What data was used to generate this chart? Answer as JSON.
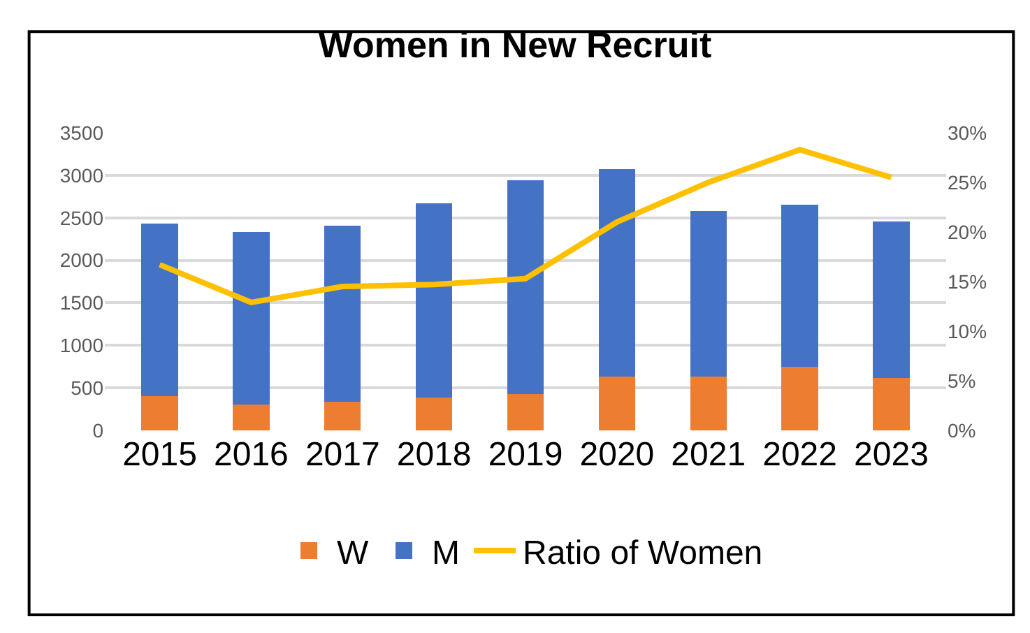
{
  "chart_data": {
    "type": "bar",
    "title": "Women in New Recruit",
    "stacked": true,
    "categories": [
      "2015",
      "2016",
      "2017",
      "2018",
      "2019",
      "2020",
      "2021",
      "2022",
      "2023"
    ],
    "series": [
      {
        "name": "W",
        "color": "#ed7d31",
        "values": [
          400,
          300,
          340,
          390,
          430,
          630,
          630,
          750,
          620
        ]
      },
      {
        "name": "M",
        "color": "#4472c4",
        "values": [
          2030,
          2030,
          2070,
          2280,
          2510,
          2440,
          1950,
          1900,
          1840
        ]
      },
      {
        "name": "Ratio of Women",
        "type": "line",
        "axis": "y2",
        "color": "#ffc000",
        "values": [
          16.7,
          12.9,
          14.5,
          14.7,
          15.3,
          21.0,
          25.0,
          28.3,
          25.5
        ]
      }
    ],
    "ylim": [
      0,
      3500
    ],
    "yticks": [
      0,
      500,
      1000,
      1500,
      2000,
      2500,
      3000,
      3500
    ],
    "y2lim": [
      0,
      30
    ],
    "y2ticks": [
      {
        "value": 0,
        "label": "0%"
      },
      {
        "value": 5,
        "label": "5%"
      },
      {
        "value": 10,
        "label": "10%"
      },
      {
        "value": 15,
        "label": "15%"
      },
      {
        "value": 20,
        "label": "20%"
      },
      {
        "value": 25,
        "label": "25%"
      },
      {
        "value": 30,
        "label": "30%"
      }
    ],
    "grid": "y",
    "legend": "bottom",
    "marker": "none",
    "line_style": "solid"
  }
}
